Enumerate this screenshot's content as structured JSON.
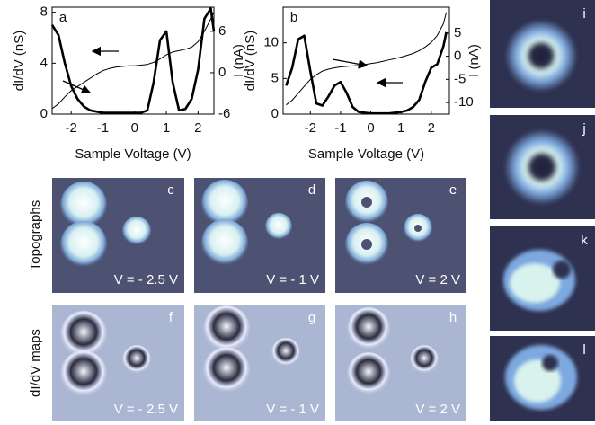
{
  "chart_data": [
    {
      "type": "line",
      "label": "a",
      "xlabel": "Sample Voltage (V)",
      "ylabel": "dI/dV (nS)",
      "y2label": "I (nA)",
      "x": [
        -2.6,
        -2.4,
        -2.2,
        -2.0,
        -1.8,
        -1.6,
        -1.4,
        -1.2,
        -1.0,
        -0.8,
        -0.6,
        -0.4,
        -0.2,
        0,
        0.2,
        0.4,
        0.6,
        0.8,
        1.0,
        1.2,
        1.4,
        1.6,
        1.8,
        2.0,
        2.2,
        2.4,
        2.5
      ],
      "xlim": [
        -2.6,
        2.5
      ],
      "xticks": [
        -2,
        -1,
        0,
        1,
        2
      ],
      "ylim": [
        0,
        8.4
      ],
      "yticks": [
        0,
        4,
        8
      ],
      "y2lim": [
        -6,
        9.5
      ],
      "y2ticks": [
        -6,
        0,
        6
      ],
      "series": [
        {
          "color": "#000000",
          "values": [
            7.0,
            6.2,
            4.0,
            2.2,
            1.2,
            0.6,
            0.3,
            0.2,
            0.1,
            0.1,
            0.1,
            0.1,
            0.1,
            0.1,
            0.1,
            0.3,
            2.5,
            5.8,
            6.5,
            2.5,
            0.3,
            0.4,
            1.2,
            3.5,
            7.5,
            8.3,
            6.5
          ]
        },
        {
          "color": "#000000",
          "axis": "y2",
          "values": [
            -5.2,
            -4.5,
            -3.5,
            -2.6,
            -2.0,
            -1.4,
            -0.8,
            -0.2,
            0.3,
            0.6,
            0.8,
            0.9,
            1.0,
            1.0,
            1.1,
            1.2,
            1.5,
            2.0,
            2.6,
            3.0,
            3.2,
            3.4,
            3.7,
            4.5,
            6.0,
            7.8,
            8.8
          ]
        }
      ]
    },
    {
      "type": "line",
      "label": "b",
      "xlabel": "Sample Voltage (V)",
      "ylabel": "dI/dV (nS)",
      "y2label": "I (nA)",
      "x": [
        -2.8,
        -2.6,
        -2.4,
        -2.2,
        -2.0,
        -1.8,
        -1.6,
        -1.4,
        -1.2,
        -1.0,
        -0.8,
        -0.6,
        -0.4,
        -0.2,
        0,
        0.2,
        0.4,
        0.6,
        0.8,
        1.0,
        1.2,
        1.4,
        1.6,
        1.8,
        2.0,
        2.2,
        2.4,
        2.5
      ],
      "xlim": [
        -2.9,
        2.6
      ],
      "xticks": [
        -2,
        -1,
        0,
        1,
        2
      ],
      "ylim": [
        0,
        15
      ],
      "yticks": [
        0,
        5,
        10
      ],
      "y2lim": [
        -12.5,
        10.6
      ],
      "y2ticks": [
        -10,
        -5,
        0,
        5
      ],
      "series": [
        {
          "color": "#000000",
          "values": [
            4.0,
            6.5,
            10.5,
            11.0,
            6.0,
            1.5,
            1.2,
            2.5,
            4.0,
            4.5,
            3.0,
            1.0,
            0.3,
            0.2,
            0.1,
            0.1,
            0.1,
            0.1,
            0.2,
            0.3,
            0.5,
            1.0,
            2.0,
            4.5,
            6.5,
            7.0,
            9.5,
            11.5
          ]
        },
        {
          "color": "#000000",
          "axis": "y2",
          "values": [
            -10.5,
            -9.5,
            -8.0,
            -6.5,
            -5.0,
            -4.0,
            -3.2,
            -2.8,
            -2.5,
            -2.3,
            -2.2,
            -2.1,
            -2.0,
            -1.8,
            -1.6,
            -1.4,
            -1.1,
            -0.8,
            -0.5,
            -0.2,
            0.2,
            0.6,
            1.2,
            2.0,
            3.0,
            4.5,
            7.0,
            9.5
          ]
        }
      ]
    }
  ],
  "images": {
    "row_labels": [
      "Topographs",
      "dI/dV maps"
    ],
    "panels": [
      {
        "label": "c",
        "caption": "V = - 2.5 V"
      },
      {
        "label": "d",
        "caption": "V = - 1 V"
      },
      {
        "label": "e",
        "caption": "V = 2 V"
      },
      {
        "label": "f",
        "caption": "V = - 2.5 V"
      },
      {
        "label": "g",
        "caption": "V = - 1 V"
      },
      {
        "label": "h",
        "caption": "V = 2 V"
      }
    ],
    "side_panels": [
      "i",
      "j",
      "k",
      "l"
    ]
  }
}
